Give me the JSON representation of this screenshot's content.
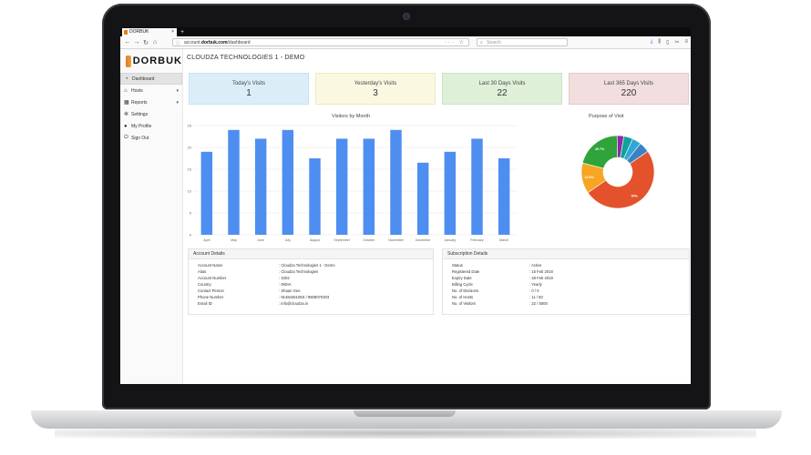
{
  "browser": {
    "tab_title": "DORBUK",
    "new_tab": "+",
    "url_prefix": "account.",
    "url_domain": "dorbuk.com",
    "url_path": "/dashboard",
    "url_actions": "··· ☆",
    "search_placeholder": "Search"
  },
  "brand": {
    "logo_text": "DORBUK",
    "accent": "#e6781e"
  },
  "sidebar": {
    "items": [
      {
        "label": "Dashboard",
        "icon": "dashboard-icon",
        "active": true
      },
      {
        "label": "Hosts",
        "icon": "home-icon",
        "caret": true
      },
      {
        "label": "Reports",
        "icon": "reports-icon",
        "caret": true
      },
      {
        "label": "Settings",
        "icon": "gear-icon"
      },
      {
        "label": "My Profile",
        "icon": "user-icon"
      },
      {
        "label": "Sign Out",
        "icon": "power-icon"
      }
    ]
  },
  "header": {
    "company": "CLOUDZA TECHNOLOGIES 1 - DEMO"
  },
  "cards": [
    {
      "label": "Today's Visits",
      "value": "1",
      "color": "#dbeef8"
    },
    {
      "label": "Yesterday's Visits",
      "value": "3",
      "color": "#fbf8e2"
    },
    {
      "label": "Last 30 Days Visits",
      "value": "22",
      "color": "#def0d8"
    },
    {
      "label": "Last 365 Days Visits",
      "value": "220",
      "color": "#f2dede"
    }
  ],
  "chart_data": [
    {
      "type": "bar",
      "title": "Visitors by Month",
      "categories": [
        "April",
        "May",
        "June",
        "July",
        "August",
        "September",
        "October",
        "November",
        "December",
        "January",
        "February",
        "March"
      ],
      "values": [
        19,
        24,
        22,
        24,
        17.5,
        22,
        22,
        24,
        16.5,
        19,
        22,
        17.5
      ],
      "ylim": [
        0,
        25
      ],
      "yticks": [
        "0",
        "5",
        "10",
        "15",
        "20",
        "25"
      ],
      "grid": true,
      "color": "#4e8ef0"
    },
    {
      "type": "pie",
      "title": "Purpose of Visit",
      "slices": [
        {
          "value": 50,
          "label": "50%",
          "color": "#e4522b"
        },
        {
          "value": 13.6,
          "label": "13.6%",
          "color": "#f6a623"
        },
        {
          "value": 20.7,
          "label": "20.7%",
          "color": "#2ea43b"
        },
        {
          "value": 3,
          "label": "",
          "color": "#8e2aa4"
        },
        {
          "value": 4,
          "label": "",
          "color": "#0ea29b"
        },
        {
          "value": 4,
          "label": "",
          "color": "#2ea8d8"
        },
        {
          "value": 4.7,
          "label": "",
          "color": "#3a82c4"
        }
      ],
      "donut": true
    }
  ],
  "account": {
    "title": "Account Details",
    "rows": [
      {
        "k": "Account Name",
        "v": ": Cloudza Technologies 1 - Demo"
      },
      {
        "k": "Alias",
        "v": ": Cloudza Technologies"
      },
      {
        "k": "Account Number",
        "v": ": 1002"
      },
      {
        "k": "Country",
        "v": ": INDIA"
      },
      {
        "k": "Contact Person",
        "v": ": Shaan Geo"
      },
      {
        "k": "Phone Number",
        "v": ": 9148445106S / 9808070303"
      },
      {
        "k": "Email ID",
        "v": ": info@cloudza.in"
      }
    ]
  },
  "subscription": {
    "title": "Subscription Details",
    "rows": [
      {
        "k": "Status",
        "v": ": Active"
      },
      {
        "k": "Registered Date",
        "v": ": 15 Feb 2018"
      },
      {
        "k": "Expiry Date",
        "v": ": 28 Feb 2019"
      },
      {
        "k": "Billing Cycle",
        "v": ": Yearly"
      },
      {
        "k": "No. of Divisions",
        "v": ": 0 / 0"
      },
      {
        "k": "No. of Hosts",
        "v": ": 11 / 50"
      },
      {
        "k": "No. of Visitors",
        "v": ": 22 / 5000"
      }
    ]
  }
}
